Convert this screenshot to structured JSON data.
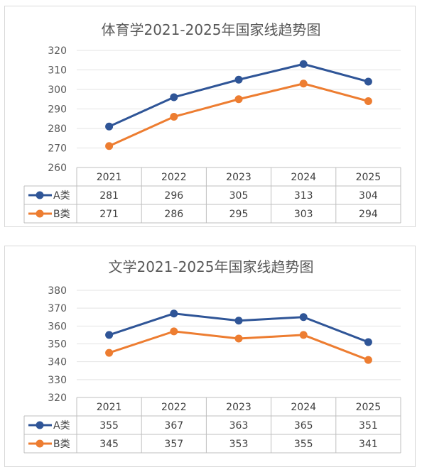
{
  "chart_data": [
    {
      "type": "line",
      "title": "体育学2021-2025年国家线趋势图",
      "categories": [
        "2021",
        "2022",
        "2023",
        "2024",
        "2025"
      ],
      "series": [
        {
          "name": "A类",
          "values": [
            281,
            296,
            305,
            313,
            304
          ],
          "color": "#2f5597"
        },
        {
          "name": "B类",
          "values": [
            271,
            286,
            295,
            303,
            294
          ],
          "color": "#ed7d31"
        }
      ],
      "yticks": [
        "320",
        "310",
        "300",
        "290",
        "280",
        "270",
        "260"
      ],
      "ylim": [
        260,
        320
      ],
      "grid": true,
      "legend": "data-table"
    },
    {
      "type": "line",
      "title": "文学2021-2025年国家线趋势图",
      "categories": [
        "2021",
        "2022",
        "2023",
        "2024",
        "2025"
      ],
      "series": [
        {
          "name": "A类",
          "values": [
            355,
            367,
            363,
            365,
            351
          ],
          "color": "#2f5597"
        },
        {
          "name": "B类",
          "values": [
            345,
            357,
            353,
            355,
            341
          ],
          "color": "#ed7d31"
        }
      ],
      "yticks": [
        "380",
        "370",
        "360",
        "350",
        "340",
        "330",
        "320"
      ],
      "ylim": [
        320,
        380
      ],
      "grid": true,
      "legend": "data-table"
    }
  ]
}
